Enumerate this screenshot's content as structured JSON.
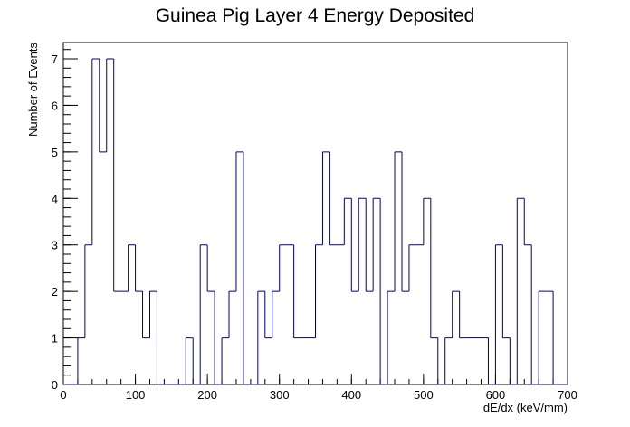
{
  "chart_data": {
    "type": "bar",
    "style": "step-histogram",
    "title": "Guinea Pig Layer 4 Energy Deposited",
    "xlabel": "dE/dx (keV/mm)",
    "ylabel": "Number of Events",
    "xlim": [
      0,
      700
    ],
    "ylim": [
      0,
      7.35
    ],
    "bin_width": 10,
    "x_ticks": [
      "0",
      "100",
      "200",
      "300",
      "400",
      "500",
      "600",
      "700"
    ],
    "y_ticks": [
      "0",
      "1",
      "2",
      "3",
      "4",
      "5",
      "6",
      "7"
    ],
    "bin_low_edges": [
      0,
      10,
      20,
      30,
      40,
      50,
      60,
      70,
      80,
      90,
      100,
      110,
      120,
      130,
      140,
      150,
      160,
      170,
      180,
      190,
      200,
      210,
      220,
      230,
      240,
      250,
      260,
      270,
      280,
      290,
      300,
      310,
      320,
      330,
      340,
      350,
      360,
      370,
      380,
      390,
      400,
      410,
      420,
      430,
      440,
      450,
      460,
      470,
      480,
      490,
      500,
      510,
      520,
      530,
      540,
      550,
      560,
      570,
      580,
      590,
      600,
      610,
      620,
      630,
      640,
      650,
      660,
      670,
      680,
      690
    ],
    "values": [
      0,
      0,
      1,
      3,
      7,
      5,
      7,
      2,
      2,
      3,
      2,
      1,
      2,
      0,
      0,
      0,
      0,
      1,
      0,
      3,
      2,
      0,
      1,
      2,
      5,
      0,
      0,
      2,
      1,
      2,
      3,
      3,
      1,
      1,
      1,
      3,
      5,
      3,
      3,
      4,
      2,
      4,
      2,
      4,
      0,
      2,
      5,
      2,
      3,
      3,
      4,
      1,
      0,
      1,
      2,
      1,
      1,
      1,
      1,
      0,
      3,
      1,
      0,
      4,
      3,
      0,
      2,
      2,
      0,
      0
    ],
    "line_color": "#00007f",
    "grid": false,
    "legend": "none"
  }
}
